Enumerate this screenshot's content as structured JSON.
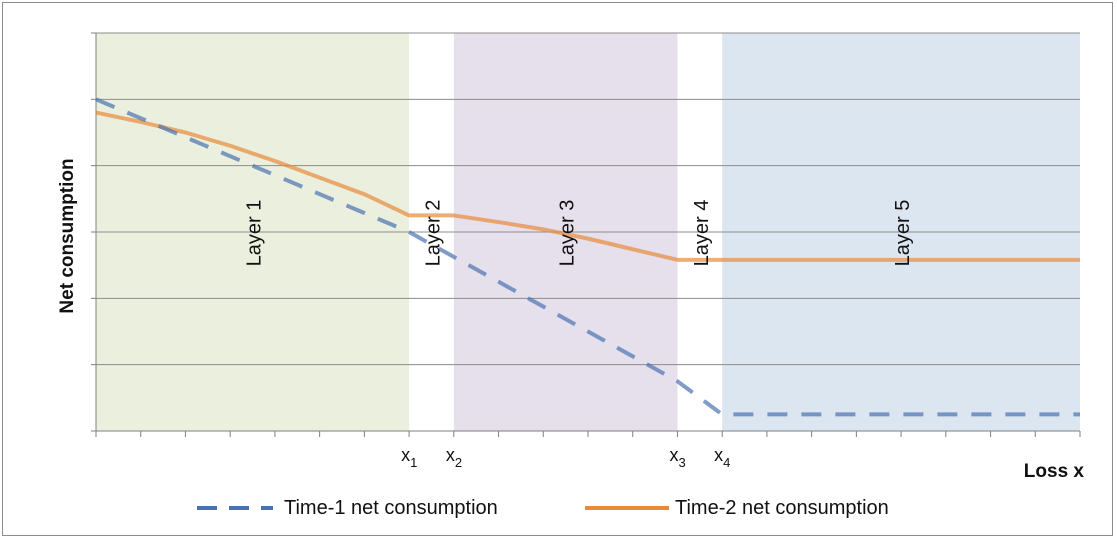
{
  "chart_data": {
    "type": "line",
    "xlabel": "Loss x",
    "ylabel": "Net consumption",
    "x_range": [
      0,
      22
    ],
    "y_range": [
      0,
      6
    ],
    "grid": true,
    "legend_position": "bottom",
    "colors": {
      "time1": "#4a72b0",
      "time2": "#e88a3c",
      "layer1": "#ebf0de",
      "layer3": "#e6e0ec",
      "layer5": "#dce6f1",
      "grid": "#8c8c8c"
    },
    "layers": [
      {
        "label": "Layer 1",
        "x_start": 0,
        "x_end": 7,
        "shaded": true,
        "color": "#ebf0de"
      },
      {
        "label": "Layer 2",
        "x_start": 7,
        "x_end": 8,
        "shaded": false,
        "color": "#ffffff"
      },
      {
        "label": "Layer 3",
        "x_start": 8,
        "x_end": 13,
        "shaded": true,
        "color": "#e6e0ec"
      },
      {
        "label": "Layer 4",
        "x_start": 13,
        "x_end": 14,
        "shaded": false,
        "color": "#ffffff"
      },
      {
        "label": "Layer 5",
        "x_start": 14,
        "x_end": 22,
        "shaded": true,
        "color": "#dce6f1"
      }
    ],
    "threshold_labels": [
      {
        "base": "x",
        "sub": "1",
        "x": 7
      },
      {
        "base": "x",
        "sub": "2",
        "x": 8
      },
      {
        "base": "x",
        "sub": "3",
        "x": 13
      },
      {
        "base": "x",
        "sub": "4",
        "x": 14
      }
    ],
    "series": [
      {
        "name": "Time-1 net consumption",
        "style": "dashed",
        "color": "#4a72b0",
        "x": [
          0,
          7,
          13,
          14,
          22
        ],
        "y": [
          5.0,
          3.0,
          0.75,
          0.25,
          0.25
        ]
      },
      {
        "name": "Time-2 net consumption",
        "style": "solid",
        "color": "#e88a3c",
        "x": [
          0,
          1,
          2,
          3,
          4,
          5,
          6,
          7,
          8,
          9,
          10,
          11,
          12,
          13,
          14,
          22
        ],
        "y": [
          4.8,
          4.66,
          4.5,
          4.3,
          4.07,
          3.82,
          3.57,
          3.25,
          3.25,
          3.15,
          3.04,
          2.9,
          2.74,
          2.58,
          2.58,
          2.58
        ]
      }
    ]
  }
}
